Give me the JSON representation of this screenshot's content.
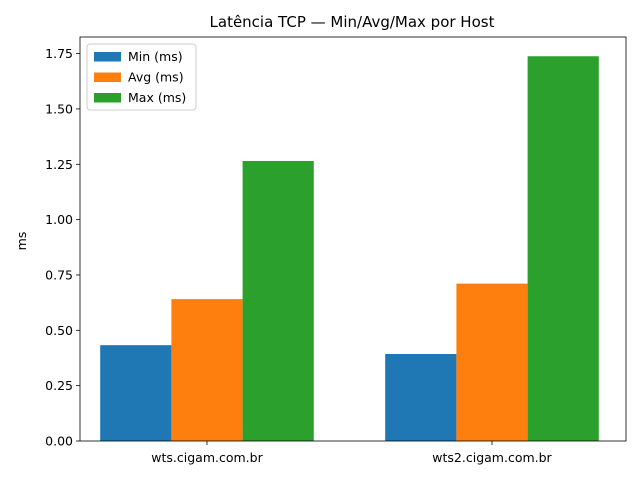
{
  "chart_data": {
    "type": "bar",
    "title": "Latência TCP — Min/Avg/Max por Host",
    "xlabel": "",
    "ylabel": "ms",
    "categories": [
      "wts.cigam.com.br",
      "wts2.cigam.com.br"
    ],
    "series": [
      {
        "name": "Min (ms)",
        "color": "#1f77b4",
        "values": [
          0.433,
          0.393
        ]
      },
      {
        "name": "Avg (ms)",
        "color": "#ff7f0e",
        "values": [
          0.641,
          0.711
        ]
      },
      {
        "name": "Max (ms)",
        "color": "#2ca02c",
        "values": [
          1.265,
          1.738
        ]
      }
    ],
    "ylim": [
      0,
      1.825
    ],
    "yticks": [
      "0.00",
      "0.25",
      "0.50",
      "0.75",
      "1.00",
      "1.25",
      "1.50",
      "1.75"
    ],
    "legend": "top-left",
    "grid": false
  }
}
